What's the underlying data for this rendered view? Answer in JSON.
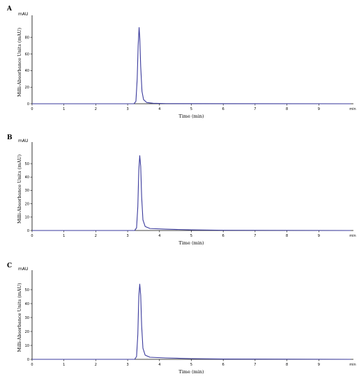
{
  "colors": {
    "trace": "#3a3a9c",
    "axis": "#000000"
  },
  "chart_data": [
    {
      "type": "line",
      "panel_label": "A",
      "y_unit": "mAU",
      "ylabel": "Milli-Absorbance Units (mAU)",
      "xlabel": "Time (min)",
      "x_unit": "min",
      "xlim": [
        0,
        10
      ],
      "ylim": [
        0,
        100
      ],
      "x_ticks": [
        0,
        1,
        2,
        3,
        4,
        5,
        6,
        7,
        8,
        9
      ],
      "y_ticks": [
        0,
        20,
        40,
        60,
        80
      ],
      "series": [
        {
          "x": [
            0,
            3.2,
            3.26,
            3.3,
            3.33,
            3.36,
            3.38,
            3.41,
            3.45,
            3.5,
            3.6,
            3.8,
            4.2,
            10
          ],
          "y": [
            0,
            0,
            3,
            30,
            70,
            92,
            80,
            45,
            15,
            5,
            1.5,
            0.6,
            0.2,
            0
          ]
        }
      ],
      "grid": false
    },
    {
      "type": "line",
      "panel_label": "B",
      "y_unit": "mAU",
      "ylabel": "Milli-Absorbance Units (mAU)",
      "xlabel": "Time (min)",
      "x_unit": "min",
      "xlim": [
        0,
        10
      ],
      "ylim": [
        0,
        62
      ],
      "x_ticks": [
        0,
        1,
        2,
        3,
        4,
        5,
        6,
        7,
        8,
        9
      ],
      "y_ticks": [
        0,
        10,
        20,
        30,
        40,
        50
      ],
      "series": [
        {
          "x": [
            0,
            3.22,
            3.28,
            3.32,
            3.35,
            3.38,
            3.41,
            3.44,
            3.48,
            3.55,
            3.7,
            4.2,
            5.0,
            6.0,
            10
          ],
          "y": [
            0,
            0,
            2,
            18,
            45,
            56,
            48,
            25,
            8,
            3,
            1.5,
            1,
            0.5,
            0.2,
            0
          ]
        }
      ],
      "grid": false
    },
    {
      "type": "line",
      "panel_label": "C",
      "y_unit": "mAU",
      "ylabel": "Milli-Absorbance Units (mAU)",
      "xlabel": "Time (min)",
      "x_unit": "min",
      "xlim": [
        0,
        10
      ],
      "ylim": [
        0,
        60
      ],
      "x_ticks": [
        0,
        1,
        2,
        3,
        4,
        5,
        6,
        7,
        8,
        9
      ],
      "y_ticks": [
        0,
        10,
        20,
        30,
        40,
        50
      ],
      "series": [
        {
          "x": [
            0,
            3.22,
            3.28,
            3.32,
            3.35,
            3.38,
            3.41,
            3.44,
            3.48,
            3.55,
            3.7,
            4.2,
            5.0,
            6.0,
            10
          ],
          "y": [
            0,
            0,
            2,
            18,
            45,
            54,
            46,
            24,
            8,
            3,
            1.5,
            1,
            0.5,
            0.2,
            0
          ]
        }
      ],
      "grid": false
    }
  ]
}
